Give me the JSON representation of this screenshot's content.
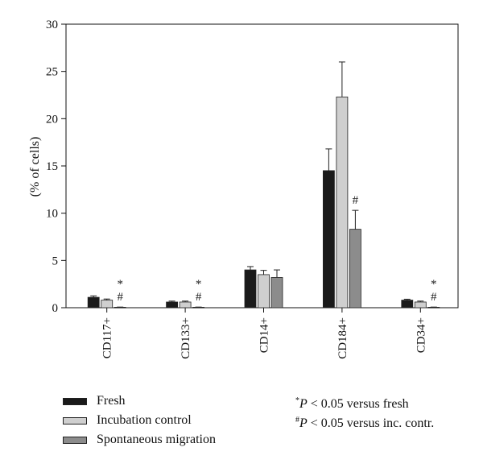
{
  "chart_data": {
    "type": "bar",
    "title": "",
    "xlabel": "",
    "ylabel": "(% of cells)",
    "ylim": [
      0,
      30
    ],
    "yticks": [
      0,
      5,
      10,
      15,
      20,
      25,
      30
    ],
    "categories": [
      "CD117+",
      "CD133+",
      "CD14+",
      "CD184+",
      "CD34+"
    ],
    "series": [
      {
        "name": "Fresh",
        "color": "#1a1a1a",
        "values": [
          1.1,
          0.6,
          4.0,
          14.5,
          0.8
        ],
        "errors": [
          0.15,
          0.1,
          0.35,
          2.3,
          0.1
        ],
        "marks": [
          "",
          "",
          "",
          "",
          ""
        ]
      },
      {
        "name": "Incubation control",
        "color": "#cfcfcf",
        "values": [
          0.8,
          0.6,
          3.5,
          22.3,
          0.6
        ],
        "errors": [
          0.12,
          0.1,
          0.45,
          3.7,
          0.1
        ],
        "marks": [
          "",
          "",
          "",
          "",
          ""
        ]
      },
      {
        "name": "Spontaneous migration",
        "color": "#8c8c8c",
        "values": [
          0.05,
          0.05,
          3.2,
          8.3,
          0.05
        ],
        "errors": [
          0.02,
          0.02,
          0.8,
          2.0,
          0.02
        ],
        "marks": [
          "*#",
          "*#",
          "",
          "#",
          "*#"
        ]
      }
    ],
    "legend_position": "bottom-left",
    "grid": false
  },
  "notes": [
    {
      "symbol": "*",
      "p": "P",
      "text": " < 0.05 versus fresh"
    },
    {
      "symbol": "#",
      "p": "P",
      "text": " < 0.05 versus inc. contr."
    }
  ]
}
